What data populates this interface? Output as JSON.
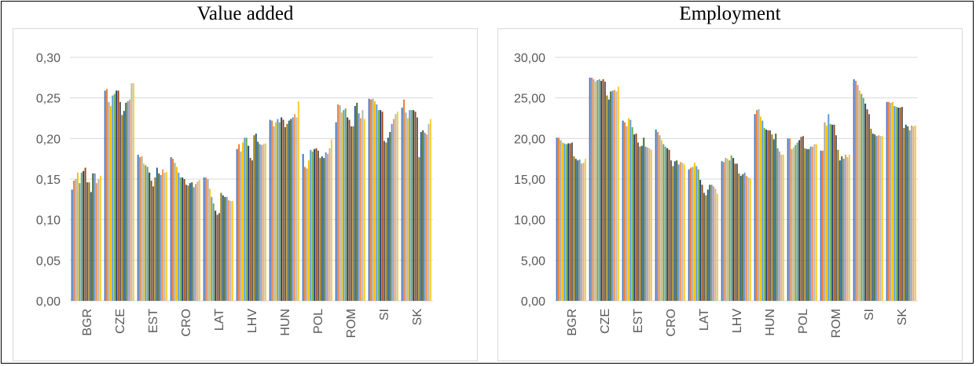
{
  "chart_data": [
    {
      "type": "bar",
      "title": "Value added",
      "xlabel": "",
      "ylabel": "",
      "ylim": [
        0,
        0.3
      ],
      "yticks": [
        "0,00",
        "0,05",
        "0,10",
        "0,15",
        "0,20",
        "0,25",
        "0,30"
      ],
      "yticks_values": [
        0,
        0.05,
        0.1,
        0.15,
        0.2,
        0.25,
        0.3
      ],
      "grid": true,
      "legend": "none",
      "categories": [
        "BGR",
        "CZE",
        "EST",
        "CRO",
        "LAT",
        "LHV",
        "HUN",
        "POL",
        "ROM",
        "SI",
        "SK"
      ],
      "series_colors": [
        "#4472c4",
        "#ed7d31",
        "#a5a5a5",
        "#ffc000",
        "#5b9bd5",
        "#70ad47",
        "#264478",
        "#9e480e",
        "#636363",
        "#997300",
        "#255e91",
        "#43682b",
        "#698ed0",
        "#f1975a",
        "#b7b7b7",
        "#ffcd33"
      ],
      "groups": [
        [
          0.137,
          0.148,
          0.15,
          0.158,
          0.145,
          0.158,
          0.16,
          0.164,
          0.146,
          0.146,
          0.134,
          0.157,
          0.157,
          0.145,
          0.15,
          0.154
        ],
        [
          0.259,
          0.261,
          0.245,
          0.24,
          0.253,
          0.255,
          0.259,
          0.259,
          0.245,
          0.229,
          0.234,
          0.244,
          0.246,
          0.248,
          0.268,
          0.268
        ],
        [
          0.18,
          0.177,
          0.178,
          0.169,
          0.167,
          0.165,
          0.158,
          0.148,
          0.141,
          0.152,
          0.164,
          0.157,
          0.155,
          0.162,
          0.158,
          0.159
        ],
        [
          0.177,
          0.175,
          0.17,
          0.165,
          0.158,
          0.152,
          0.152,
          0.15,
          0.143,
          0.142,
          0.145,
          0.146,
          0.14,
          0.144,
          0.147,
          0.149
        ],
        [
          0.152,
          0.152,
          0.15,
          0.138,
          0.128,
          0.12,
          0.111,
          0.106,
          0.108,
          0.133,
          0.13,
          0.128,
          0.128,
          0.124,
          0.123,
          0.123
        ],
        [
          0.187,
          0.193,
          0.184,
          0.195,
          0.201,
          0.201,
          0.191,
          0.176,
          0.173,
          0.204,
          0.206,
          0.196,
          0.193,
          0.192,
          0.193,
          0.194
        ],
        [
          0.223,
          0.222,
          0.215,
          0.22,
          0.224,
          0.22,
          0.226,
          0.223,
          0.214,
          0.218,
          0.222,
          0.224,
          0.226,
          0.23,
          0.226,
          0.246
        ],
        [
          0.181,
          0.165,
          0.163,
          0.173,
          0.186,
          0.184,
          0.187,
          0.188,
          0.185,
          0.176,
          0.178,
          0.176,
          0.183,
          0.181,
          0.188,
          0.199
        ],
        [
          0.22,
          0.242,
          0.241,
          0.232,
          0.235,
          0.237,
          0.226,
          0.223,
          0.215,
          0.215,
          0.24,
          0.244,
          0.231,
          0.225,
          0.235,
          0.224
        ],
        [
          0.249,
          0.248,
          0.249,
          0.246,
          0.242,
          0.235,
          0.235,
          0.233,
          0.197,
          0.195,
          0.201,
          0.208,
          0.218,
          0.224,
          0.23,
          0.233
        ],
        [
          0.238,
          0.248,
          0.232,
          0.225,
          0.235,
          0.235,
          0.235,
          0.233,
          0.226,
          0.177,
          0.208,
          0.21,
          0.207,
          0.205,
          0.218,
          0.224
        ]
      ]
    },
    {
      "type": "bar",
      "title": "Employment",
      "xlabel": "",
      "ylabel": "",
      "ylim": [
        0,
        30
      ],
      "yticks": [
        "0,00",
        "5,00",
        "10,00",
        "15,00",
        "20,00",
        "25,00",
        "30,00"
      ],
      "yticks_values": [
        0,
        5,
        10,
        15,
        20,
        25,
        30
      ],
      "grid": true,
      "legend": "none",
      "categories": [
        "BGR",
        "CZE",
        "EST",
        "CRO",
        "LAT",
        "LHV",
        "HUN",
        "POL",
        "ROM",
        "SI",
        "SK"
      ],
      "series_colors": [
        "#4472c4",
        "#ed7d31",
        "#a5a5a5",
        "#ffc000",
        "#5b9bd5",
        "#70ad47",
        "#264478",
        "#9e480e",
        "#636363",
        "#997300",
        "#255e91",
        "#43682b",
        "#698ed0",
        "#f1975a",
        "#b7b7b7",
        "#ffcd33"
      ],
      "groups": [
        [
          20.1,
          20.1,
          19.8,
          19.5,
          19.4,
          19.3,
          19.4,
          19.4,
          19.5,
          17.8,
          17.5,
          17.3,
          17.4,
          16.9,
          17.0,
          17.5
        ],
        [
          27.5,
          27.5,
          27.3,
          27.0,
          27.2,
          27.3,
          27.1,
          27.3,
          27.0,
          25.3,
          24.8,
          25.8,
          25.9,
          26.0,
          25.8,
          26.4
        ],
        [
          22.2,
          22.0,
          21.5,
          22.5,
          22.3,
          21.4,
          20.5,
          20.6,
          19.5,
          19.0,
          19.1,
          20.1,
          19.0,
          18.9,
          18.8,
          18.6
        ],
        [
          21.1,
          20.8,
          20.4,
          19.8,
          19.3,
          19.0,
          18.8,
          18.6,
          17.3,
          16.6,
          17.2,
          17.3,
          16.8,
          17.1,
          17.0,
          16.8
        ],
        [
          16.2,
          16.4,
          16.5,
          17.0,
          16.6,
          16.2,
          14.9,
          14.3,
          13.3,
          13.0,
          13.7,
          14.3,
          14.3,
          14.1,
          13.8,
          13.2
        ],
        [
          17.2,
          17.1,
          17.6,
          17.5,
          17.3,
          17.9,
          17.6,
          16.9,
          16.9,
          15.7,
          15.4,
          15.6,
          15.8,
          15.4,
          15.2,
          15.1
        ],
        [
          23.0,
          23.5,
          23.6,
          22.7,
          22.2,
          21.3,
          21.1,
          21.0,
          21.0,
          20.5,
          19.9,
          20.6,
          18.8,
          18.4,
          18.0,
          18.0
        ],
        [
          20.0,
          20.0,
          18.7,
          18.9,
          19.2,
          19.5,
          19.8,
          20.2,
          20.3,
          18.8,
          18.7,
          18.7,
          19.0,
          19.0,
          19.3,
          19.3
        ],
        [
          18.5,
          18.5,
          22.0,
          21.6,
          23.0,
          21.8,
          21.7,
          21.7,
          20.4,
          18.6,
          17.3,
          17.8,
          17.5,
          18.0,
          17.7,
          18.0
        ],
        [
          27.3,
          27.1,
          26.6,
          25.9,
          25.5,
          25.0,
          24.3,
          23.6,
          23.0,
          21.2,
          20.6,
          20.5,
          20.3,
          20.4,
          20.3,
          20.3
        ],
        [
          24.5,
          24.5,
          24.4,
          24.5,
          24.0,
          23.9,
          23.8,
          23.8,
          23.9,
          21.3,
          21.7,
          21.5,
          21.0,
          21.6,
          21.5,
          21.6
        ]
      ]
    }
  ]
}
